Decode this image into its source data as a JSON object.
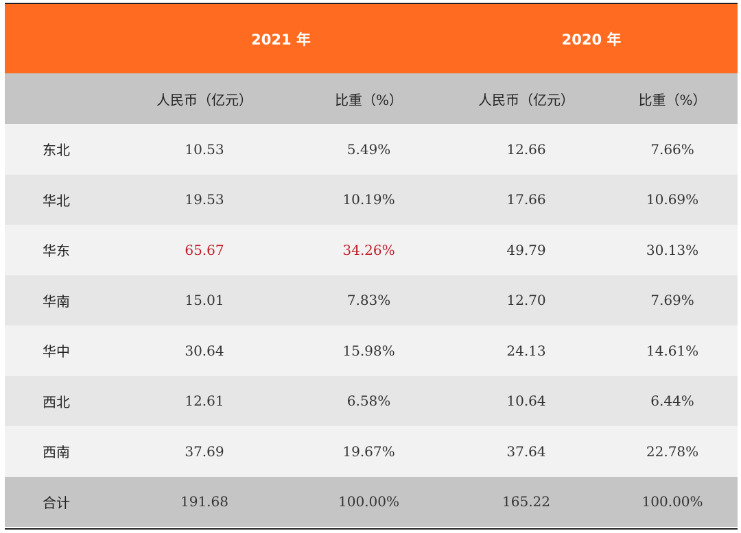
{
  "header": {
    "year_2021": "2021 年",
    "year_2020": "2020 年",
    "col_rmb": "人民币（亿元）",
    "col_share": "比重（%）"
  },
  "rows": [
    {
      "region": "东北",
      "rmb_2021": "10.53",
      "share_2021": "5.49%",
      "rmb_2020": "12.66",
      "share_2020": "7.66%"
    },
    {
      "region": "华北",
      "rmb_2021": "19.53",
      "share_2021": "10.19%",
      "rmb_2020": "17.66",
      "share_2020": "10.69%"
    },
    {
      "region": "华东",
      "rmb_2021": "65.67",
      "share_2021": "34.26%",
      "rmb_2020": "49.79",
      "share_2020": "30.13%"
    },
    {
      "region": "华南",
      "rmb_2021": "15.01",
      "share_2021": "7.83%",
      "rmb_2020": "12.70",
      "share_2020": "7.69%"
    },
    {
      "region": "华中",
      "rmb_2021": "30.64",
      "share_2021": "15.98%",
      "rmb_2020": "24.13",
      "share_2020": "14.61%"
    },
    {
      "region": "西北",
      "rmb_2021": "12.61",
      "share_2021": "6.58%",
      "rmb_2020": "10.64",
      "share_2020": "6.44%"
    },
    {
      "region": "西南",
      "rmb_2021": "37.69",
      "share_2021": "19.67%",
      "rmb_2020": "37.64",
      "share_2020": "22.78%"
    }
  ],
  "total": {
    "region": "合计",
    "rmb_2021": "191.68",
    "share_2021": "100.00%",
    "rmb_2020": "165.22",
    "share_2020": "100.00%"
  },
  "colors": {
    "header_orange": "#ff6b21",
    "subheader_gray": "#c5c5c5",
    "highlight_red": "#c0202a"
  }
}
